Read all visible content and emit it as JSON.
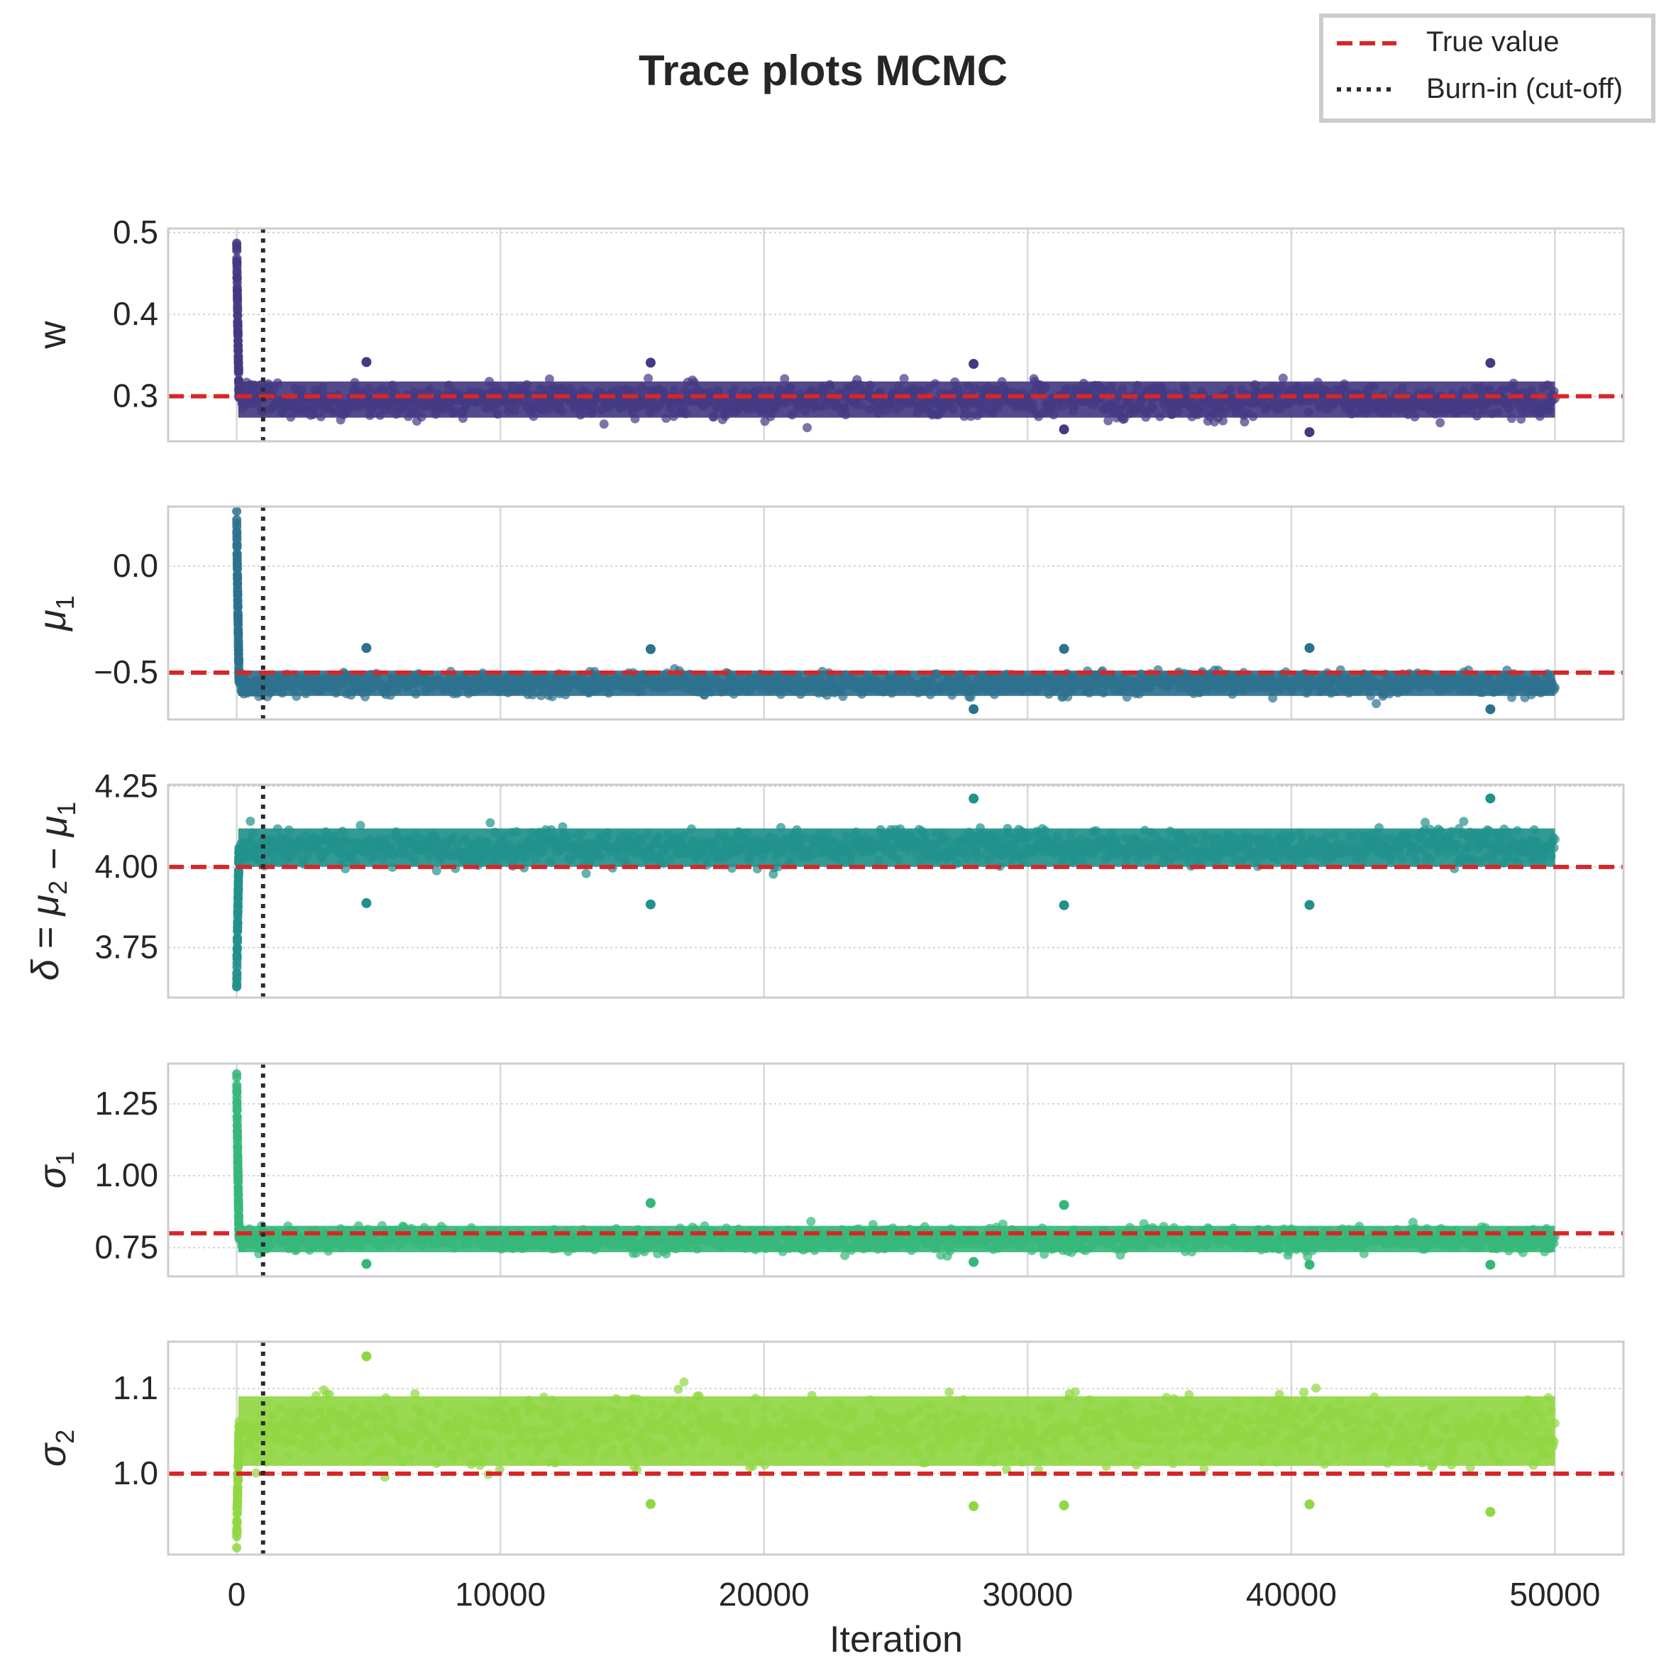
{
  "title": "Trace plots MCMC",
  "xlabel": "Iteration",
  "colors": {
    "true_value": "#d62728",
    "burn_in": "#2b2b2b",
    "grid": "#d9d9d9",
    "frame": "#cccccc",
    "text": "#262626"
  },
  "legend": {
    "placement": "top-right",
    "entries": [
      {
        "label": "True value",
        "style": "dashed",
        "color": "#d62728"
      },
      {
        "label": "Burn-in (cut-off)",
        "style": "dotted",
        "color": "#2b2b2b"
      }
    ]
  },
  "chart_data": {
    "type": "scatter",
    "x": {
      "label": "Iteration",
      "range": [
        -2600,
        52600
      ],
      "ticks": [
        "0",
        "10000",
        "20000",
        "30000",
        "40000",
        "50000"
      ],
      "tick_values": [
        0,
        10000,
        20000,
        30000,
        40000,
        50000
      ]
    },
    "n_iterations": 50000,
    "burn_in": 1000,
    "grid": true,
    "panels": [
      {
        "parameter": "w",
        "ylabel": "w",
        "color": "#443983",
        "true_value": 0.3,
        "ylim": [
          0.245,
          0.505
        ],
        "yticks": [
          "0.3",
          "0.4",
          "0.5"
        ],
        "ytick_values": [
          0.3,
          0.4,
          0.5
        ],
        "initial_value": 0.49,
        "post_burnin_center": 0.296,
        "post_burnin_spread": 0.013,
        "post_burnin_range": [
          0.255,
          0.345
        ]
      },
      {
        "parameter": "mu1",
        "ylabel": "μ1",
        "color": "#2c718e",
        "true_value": -0.5,
        "ylim": [
          -0.72,
          0.28
        ],
        "yticks": [
          "0.0",
          "−0.5"
        ],
        "ytick_values": [
          0.0,
          -0.5
        ],
        "initial_value": 0.25,
        "post_burnin_center": -0.55,
        "post_burnin_spread": 0.035,
        "post_burnin_range": [
          -0.68,
          -0.38
        ]
      },
      {
        "parameter": "delta",
        "ylabel": "δ = μ2 − μ1",
        "color": "#21918c",
        "true_value": 4.0,
        "ylim": [
          3.595,
          4.255
        ],
        "yticks": [
          "4.25",
          "4.00",
          "3.75"
        ],
        "ytick_values": [
          4.25,
          4.0,
          3.75
        ],
        "initial_value": 3.62,
        "post_burnin_center": 4.06,
        "post_burnin_spread": 0.035,
        "post_burnin_range": [
          3.88,
          4.22
        ]
      },
      {
        "parameter": "sigma1",
        "ylabel": "σ1",
        "color": "#35b779",
        "true_value": 0.8,
        "ylim": [
          0.65,
          1.39
        ],
        "yticks": [
          "1.25",
          "1.00",
          "0.75"
        ],
        "ytick_values": [
          1.25,
          1.0,
          0.75
        ],
        "initial_value": 1.35,
        "post_burnin_center": 0.78,
        "post_burnin_spread": 0.027,
        "post_burnin_range": [
          0.69,
          0.91
        ]
      },
      {
        "parameter": "sigma2",
        "ylabel": "σ2",
        "color": "#90d743",
        "true_value": 1.0,
        "ylim": [
          0.905,
          1.155
        ],
        "yticks": [
          "1.1",
          "1.0"
        ],
        "ytick_values": [
          1.1,
          1.0
        ],
        "initial_value": 0.92,
        "post_burnin_center": 1.05,
        "post_burnin_spread": 0.024,
        "post_burnin_range": [
          0.955,
          1.14
        ]
      }
    ]
  }
}
